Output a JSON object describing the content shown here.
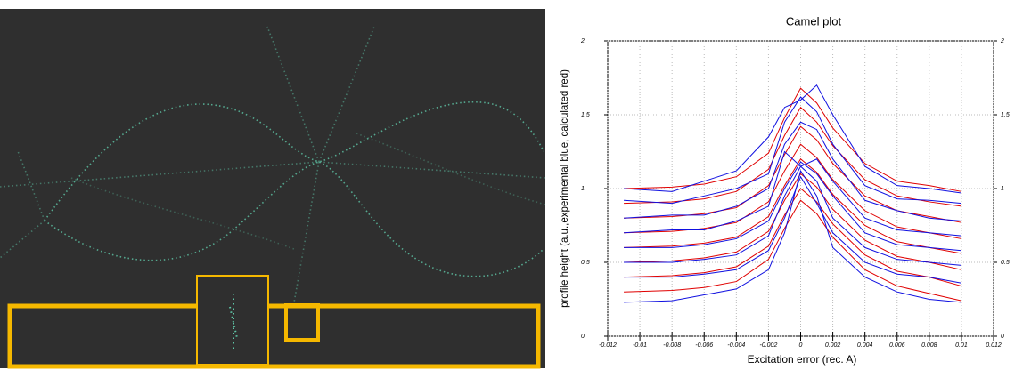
{
  "chart_data": {
    "type": "line",
    "title": "Camel plot",
    "x_label": "Excitation error (rec. A)",
    "y_label": "profile height (a.u.,experimental blue, calculated red)",
    "x": [
      -0.011,
      -0.008,
      -0.006,
      -0.004,
      -0.002,
      -0.001,
      0,
      0.001,
      0.002,
      0.004,
      0.006,
      0.008,
      0.01
    ],
    "series": [
      {
        "color": "#e00000",
        "values": [
          1.0,
          1.01,
          1.03,
          1.08,
          1.24,
          1.48,
          1.68,
          1.58,
          1.41,
          1.17,
          1.05,
          1.02,
          0.98
        ]
      },
      {
        "color": "#e00000",
        "values": [
          0.9,
          0.91,
          0.93,
          0.98,
          1.13,
          1.36,
          1.55,
          1.45,
          1.29,
          1.06,
          0.95,
          0.91,
          0.88
        ]
      },
      {
        "color": "#e00000",
        "values": [
          0.8,
          0.81,
          0.83,
          0.87,
          1.02,
          1.23,
          1.42,
          1.33,
          1.17,
          0.95,
          0.85,
          0.81,
          0.77
        ]
      },
      {
        "color": "#e00000",
        "values": [
          0.7,
          0.71,
          0.73,
          0.77,
          0.91,
          1.12,
          1.3,
          1.21,
          1.06,
          0.85,
          0.74,
          0.7,
          0.66
        ]
      },
      {
        "color": "#e00000",
        "values": [
          0.6,
          0.61,
          0.63,
          0.67,
          0.81,
          1.02,
          1.2,
          1.11,
          0.96,
          0.75,
          0.64,
          0.6,
          0.56
        ]
      },
      {
        "color": "#e00000",
        "values": [
          0.5,
          0.51,
          0.53,
          0.57,
          0.71,
          0.92,
          1.1,
          1.01,
          0.86,
          0.65,
          0.54,
          0.5,
          0.45
        ]
      },
      {
        "color": "#e00000",
        "values": [
          0.4,
          0.41,
          0.43,
          0.47,
          0.61,
          0.82,
          1.0,
          0.91,
          0.76,
          0.55,
          0.44,
          0.4,
          0.34
        ]
      },
      {
        "color": "#e00000",
        "values": [
          0.3,
          0.31,
          0.33,
          0.37,
          0.52,
          0.73,
          0.92,
          0.83,
          0.67,
          0.45,
          0.34,
          0.29,
          0.24
        ]
      },
      {
        "color": "#1010e0",
        "values": [
          1.0,
          0.98,
          1.05,
          1.12,
          1.35,
          1.55,
          1.6,
          1.7,
          1.5,
          1.15,
          1.02,
          1.0,
          0.97
        ]
      },
      {
        "color": "#1010e0",
        "values": [
          0.92,
          0.9,
          0.95,
          1.0,
          1.1,
          1.45,
          1.62,
          1.52,
          1.3,
          1.02,
          0.93,
          0.92,
          0.9
        ]
      },
      {
        "color": "#1010e0",
        "values": [
          0.8,
          0.82,
          0.82,
          0.88,
          1.0,
          1.3,
          1.45,
          1.4,
          1.2,
          0.92,
          0.85,
          0.8,
          0.78
        ]
      },
      {
        "color": "#1010e0",
        "values": [
          0.7,
          0.72,
          0.72,
          0.78,
          0.88,
          1.25,
          1.15,
          1.2,
          1.05,
          0.8,
          0.72,
          0.7,
          0.68
        ]
      },
      {
        "color": "#1010e0",
        "values": [
          0.6,
          0.6,
          0.62,
          0.66,
          0.78,
          1.0,
          1.18,
          1.1,
          0.95,
          0.7,
          0.62,
          0.6,
          0.58
        ]
      },
      {
        "color": "#1010e0",
        "values": [
          0.5,
          0.5,
          0.52,
          0.55,
          0.68,
          0.95,
          1.15,
          1.05,
          0.8,
          0.6,
          0.52,
          0.5,
          0.48
        ]
      },
      {
        "color": "#1010e0",
        "values": [
          0.4,
          0.4,
          0.42,
          0.45,
          0.58,
          0.8,
          1.08,
          0.9,
          0.7,
          0.5,
          0.42,
          0.4,
          0.36
        ]
      },
      {
        "color": "#1010e0",
        "values": [
          0.23,
          0.24,
          0.28,
          0.32,
          0.45,
          0.7,
          1.12,
          0.95,
          0.6,
          0.4,
          0.3,
          0.25,
          0.23
        ]
      }
    ],
    "xlim": [
      -0.012,
      0.012
    ],
    "xticks": [
      -0.012,
      -0.01,
      -0.008,
      -0.006,
      -0.004,
      -0.002,
      0,
      0.002,
      0.004,
      0.006,
      0.008,
      0.01,
      0.012
    ],
    "ylim": [
      0,
      2
    ],
    "yticks": [
      0,
      0.5,
      1,
      1.5,
      2
    ],
    "grid": true
  }
}
